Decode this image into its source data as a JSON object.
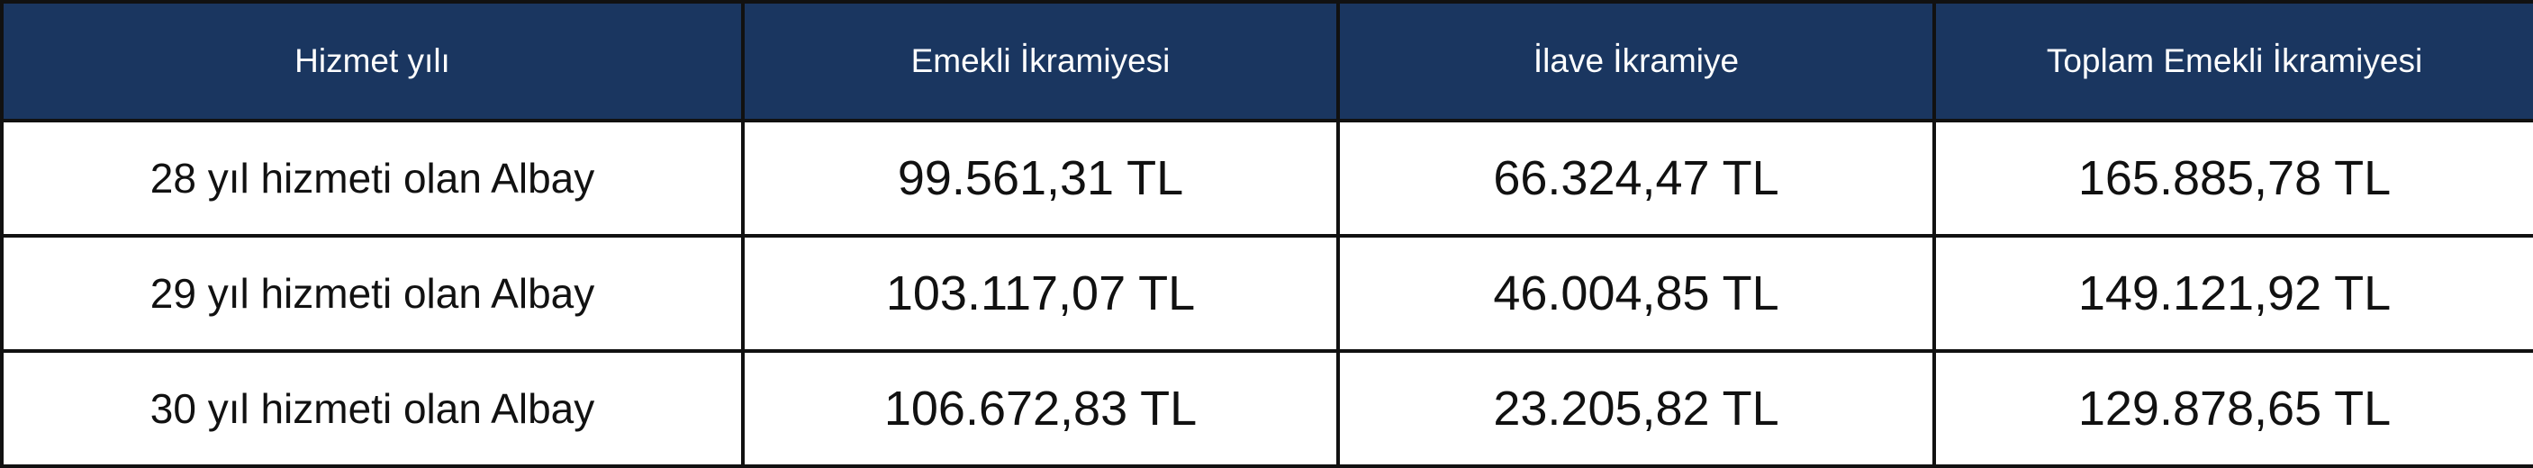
{
  "table": {
    "header": [
      "Hizmet yılı",
      "Emekli İkramiyesi",
      "İlave İkramiye",
      "Toplam Emekli İkramiyesi"
    ],
    "rows": [
      [
        "28 yıl hizmeti olan Albay",
        "99.561,31 TL",
        "66.324,47 TL",
        "165.885,78 TL"
      ],
      [
        "29 yıl hizmeti olan Albay",
        "103.117,07 TL",
        "46.004,85 TL",
        "149.121,92 TL"
      ],
      [
        "30 yıl hizmeti olan Albay",
        "106.672,83 TL",
        "23.205,82 TL",
        "129.878,65 TL"
      ]
    ]
  }
}
